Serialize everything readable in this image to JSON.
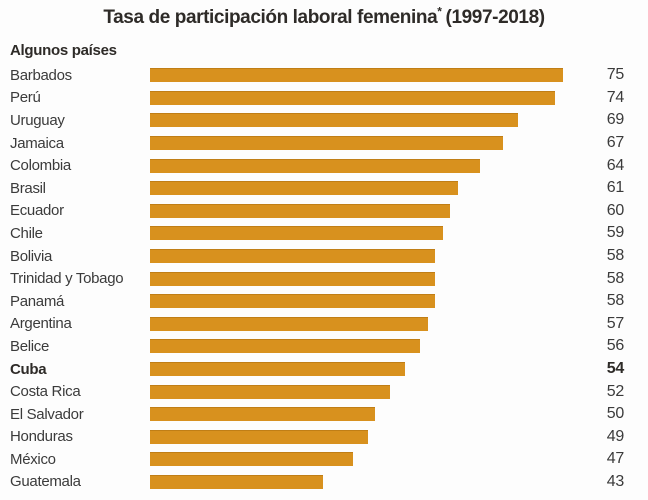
{
  "title": {
    "main": "Tasa de participación laboral femenina",
    "asterisk": "*",
    "period": "(1997-2018)"
  },
  "subtitle": "Algunos países",
  "colors": {
    "bar": "#D8911E",
    "text": "#3B3B3B",
    "title_text": "#2E2B28"
  },
  "chart_data": {
    "type": "bar",
    "orientation": "horizontal",
    "title": "Tasa de participación laboral femenina* (1997-2018)",
    "subtitle": "Algunos países",
    "categories": [
      "Barbados",
      "Perú",
      "Uruguay",
      "Jamaica",
      "Colombia",
      "Brasil",
      "Ecuador",
      "Chile",
      "Bolivia",
      "Trinidad y Tobago",
      "Panamá",
      "Argentina",
      "Belice",
      "Cuba",
      "Costa Rica",
      "El Salvador",
      "Honduras",
      "México",
      "Guatemala"
    ],
    "values": [
      75,
      74,
      69,
      67,
      64,
      61,
      60,
      59,
      58,
      58,
      58,
      57,
      56,
      54,
      52,
      50,
      49,
      47,
      43
    ],
    "highlighted_category": "Cuba",
    "value_labels_shown": true,
    "axis_baseline": 20,
    "axis_max": 75,
    "grid": false,
    "legend": false,
    "bar_color": "#D8911E"
  }
}
